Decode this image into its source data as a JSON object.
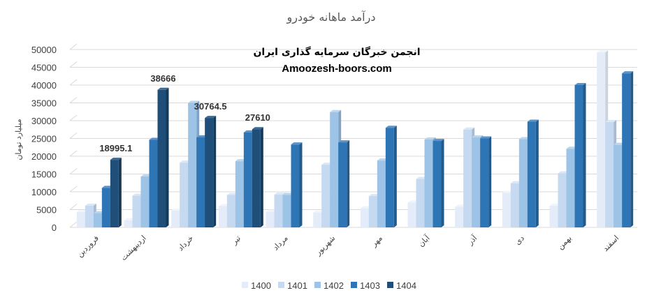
{
  "chart_data": {
    "type": "bar",
    "title": "درآمد ماهانه خودرو",
    "ylabel": "میلیارد تومان",
    "xlabel": "",
    "ylim": [
      0,
      50000
    ],
    "yticks": [
      0,
      5000,
      10000,
      15000,
      20000,
      25000,
      30000,
      35000,
      40000,
      45000,
      50000
    ],
    "grid": true,
    "legend_position": "bottom",
    "categories": [
      "فروردین",
      "اردیبهشت",
      "خرداد",
      "تیر",
      "مرداد",
      "شهریور",
      "مهر",
      "آبان",
      "آذر",
      "دی",
      "بهمن",
      "اسفند"
    ],
    "series": [
      {
        "name": "1400",
        "color": "#e3ecf8",
        "values": [
          4300,
          2000,
          4700,
          6000,
          4400,
          4200,
          5400,
          7000,
          5800,
          9700,
          6100,
          49200
        ]
      },
      {
        "name": "1401",
        "color": "#c5d9f1",
        "values": [
          6100,
          8900,
          18200,
          9100,
          9200,
          17600,
          8800,
          13600,
          27500,
          12400,
          15200,
          29600
        ]
      },
      {
        "name": "1402",
        "color": "#9dc3e6",
        "values": [
          4000,
          14300,
          35000,
          18600,
          9100,
          32400,
          18800,
          24700,
          25300,
          24800,
          22100,
          23200
        ]
      },
      {
        "name": "1403",
        "color": "#2e75b6",
        "values": [
          11100,
          24600,
          25300,
          26700,
          23300,
          23900,
          28000,
          24300,
          25000,
          29700,
          40000,
          43300
        ]
      },
      {
        "name": "1404",
        "color": "#1f4e79",
        "values": [
          18995.1,
          38666,
          30764.5,
          27610,
          null,
          null,
          null,
          null,
          null,
          null,
          null,
          null
        ]
      }
    ],
    "data_labels": [
      "18995.1",
      "38666",
      "30764.5",
      "27610"
    ]
  },
  "watermark": {
    "line1": "انجمن خبرگان سرمایه گذاری ایران",
    "line2": "Amoozesh-boors.com"
  }
}
